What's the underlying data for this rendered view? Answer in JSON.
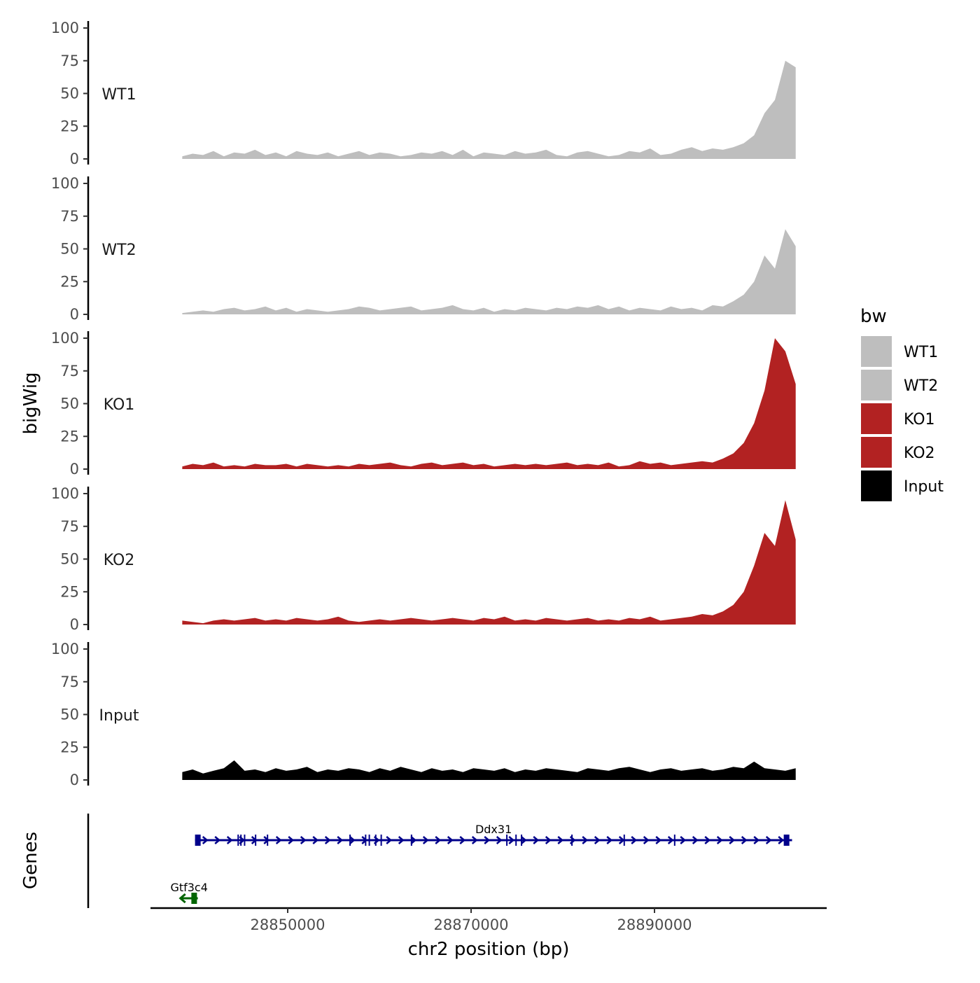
{
  "chart_data": {
    "type": "area",
    "xlabel": "chr2 position (bp)",
    "ylabel": "bigWig",
    "genes_label": "Genes",
    "xlim": [
      28833200,
      28907400
    ],
    "x_ticks": [
      28850000,
      28870000,
      28890000
    ],
    "x_tick_labels": [
      "28850000",
      "28870000",
      "28890000"
    ],
    "ylim": [
      0,
      100
    ],
    "y_ticks": [
      0,
      25,
      50,
      75,
      100
    ],
    "y_tick_labels": [
      "0",
      "25",
      "50",
      "75",
      "100"
    ],
    "x_start": 28838500,
    "x_end": 28905400,
    "legend": {
      "title": "bw",
      "placement": "right",
      "entries": [
        {
          "label": "WT1",
          "color": "#BEBEBE"
        },
        {
          "label": "WT2",
          "color": "#BEBEBE"
        },
        {
          "label": "KO1",
          "color": "#B22222"
        },
        {
          "label": "KO2",
          "color": "#B22222"
        },
        {
          "label": "Input",
          "color": "#000000"
        }
      ]
    },
    "series": [
      {
        "name": "WT1",
        "color": "#BEBEBE",
        "values": [
          2,
          4,
          3,
          6,
          2,
          5,
          4,
          7,
          3,
          5,
          2,
          6,
          4,
          3,
          5,
          2,
          4,
          6,
          3,
          5,
          4,
          2,
          3,
          5,
          4,
          6,
          3,
          7,
          2,
          5,
          4,
          3,
          6,
          4,
          5,
          7,
          3,
          2,
          5,
          6,
          4,
          2,
          3,
          6,
          5,
          8,
          3,
          4,
          7,
          9,
          6,
          8,
          7,
          9,
          12,
          18,
          35,
          45,
          75,
          70
        ]
      },
      {
        "name": "WT2",
        "color": "#BEBEBE",
        "values": [
          1,
          2,
          3,
          2,
          4,
          5,
          3,
          4,
          6,
          3,
          5,
          2,
          4,
          3,
          2,
          3,
          4,
          6,
          5,
          3,
          4,
          5,
          6,
          3,
          4,
          5,
          7,
          4,
          3,
          5,
          2,
          4,
          3,
          5,
          4,
          3,
          5,
          4,
          6,
          5,
          7,
          4,
          6,
          3,
          5,
          4,
          3,
          6,
          4,
          5,
          3,
          7,
          6,
          10,
          15,
          25,
          45,
          35,
          65,
          52
        ]
      },
      {
        "name": "KO1",
        "color": "#B22222",
        "values": [
          2,
          4,
          3,
          5,
          2,
          3,
          2,
          4,
          3,
          3,
          4,
          2,
          4,
          3,
          2,
          3,
          2,
          4,
          3,
          4,
          5,
          3,
          2,
          4,
          5,
          3,
          4,
          5,
          3,
          4,
          2,
          3,
          4,
          3,
          4,
          3,
          4,
          5,
          3,
          4,
          3,
          5,
          2,
          3,
          6,
          4,
          5,
          3,
          4,
          5,
          6,
          5,
          8,
          12,
          20,
          35,
          60,
          100,
          90,
          65
        ]
      },
      {
        "name": "KO2",
        "color": "#B22222",
        "values": [
          3,
          2,
          1,
          3,
          4,
          3,
          4,
          5,
          3,
          4,
          3,
          5,
          4,
          3,
          4,
          6,
          3,
          2,
          3,
          4,
          3,
          4,
          5,
          4,
          3,
          4,
          5,
          4,
          3,
          5,
          4,
          6,
          3,
          4,
          3,
          5,
          4,
          3,
          4,
          5,
          3,
          4,
          3,
          5,
          4,
          6,
          3,
          4,
          5,
          6,
          8,
          7,
          10,
          15,
          25,
          45,
          70,
          60,
          95,
          65
        ]
      },
      {
        "name": "Input",
        "color": "#000000",
        "values": [
          6,
          8,
          5,
          7,
          9,
          15,
          7,
          8,
          6,
          9,
          7,
          8,
          10,
          6,
          8,
          7,
          9,
          8,
          6,
          9,
          7,
          10,
          8,
          6,
          9,
          7,
          8,
          6,
          9,
          8,
          7,
          9,
          6,
          8,
          7,
          9,
          8,
          7,
          6,
          9,
          8,
          7,
          9,
          10,
          8,
          6,
          8,
          9,
          7,
          8,
          9,
          7,
          8,
          10,
          9,
          14,
          9,
          8,
          7,
          9
        ]
      }
    ],
    "genes": [
      {
        "name": "Ddx31",
        "strand": "+",
        "color": "#00008B",
        "start": 28839900,
        "end": 28905000,
        "exons": [
          28840200,
          28844600,
          28844900,
          28845300,
          28846500,
          28847800,
          28856800,
          28858500,
          28858900,
          28859600,
          28860200,
          28863500,
          28873900,
          28874900,
          28875500,
          28881000,
          28886700,
          28892200,
          28904400
        ]
      },
      {
        "name": "Gtf3c4",
        "strand": "-",
        "color": "#006400",
        "start": 28838300,
        "end": 28840200,
        "exons": [
          28839800
        ]
      }
    ]
  }
}
